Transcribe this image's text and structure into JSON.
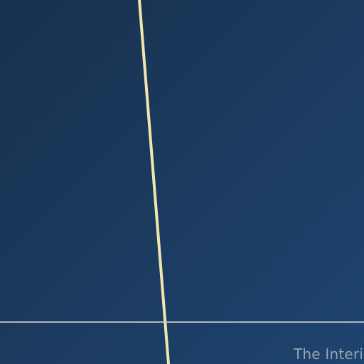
{
  "background": {
    "gradient_start": "#18314f",
    "gradient_end": "#1e4470"
  },
  "diagonal_line": {
    "color": "#f2e6b0"
  },
  "horizontal_line": {
    "color": "#c8ccd0"
  },
  "caption": {
    "text": "The Interio",
    "color": "#9aa4ad"
  }
}
